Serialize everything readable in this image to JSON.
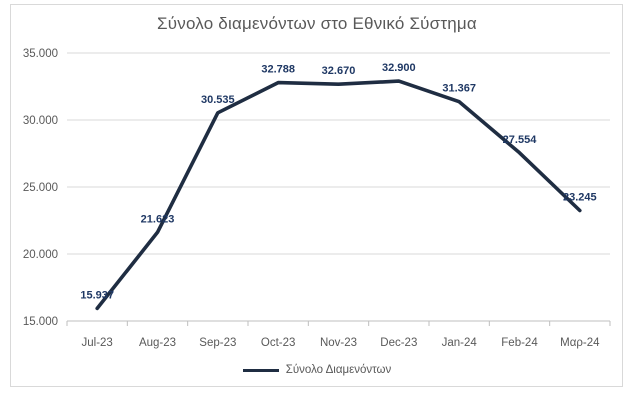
{
  "chart_data": {
    "type": "line",
    "title": "Σύνολο διαμενόντων στο Εθνικό Σύστημα",
    "categories": [
      "Jul-23",
      "Aug-23",
      "Sep-23",
      "Oct-23",
      "Nov-23",
      "Dec-23",
      "Jan-24",
      "Feb-24",
      "Μαρ-24"
    ],
    "series": [
      {
        "name": "Σύνολο Διαμενόντων",
        "values": [
          15937,
          21623,
          30535,
          32788,
          32670,
          32900,
          31367,
          27554,
          23245
        ],
        "labels": [
          "15.937",
          "21.623",
          "30.535",
          "32.788",
          "32.670",
          "32.900",
          "31.367",
          "27.554",
          "23.245"
        ]
      }
    ],
    "ylim": [
      15000,
      35000
    ],
    "yticks": {
      "values": [
        15000,
        20000,
        25000,
        30000,
        35000
      ],
      "labels": [
        "15.000",
        "20.000",
        "25.000",
        "30.000",
        "35.000"
      ]
    },
    "xlabel": "",
    "ylabel": "",
    "grid": true,
    "legend": {
      "position": "bottom",
      "entries": [
        "Σύνολο Διαμενόντων"
      ]
    },
    "colors": {
      "line": "#1f2d42",
      "data_label": "#1f3864",
      "axis_text": "#595959",
      "title": "#595959",
      "gridline": "#d9d9d9",
      "axis_line": "#bfbfbf",
      "border": "#d9d9d9"
    }
  }
}
